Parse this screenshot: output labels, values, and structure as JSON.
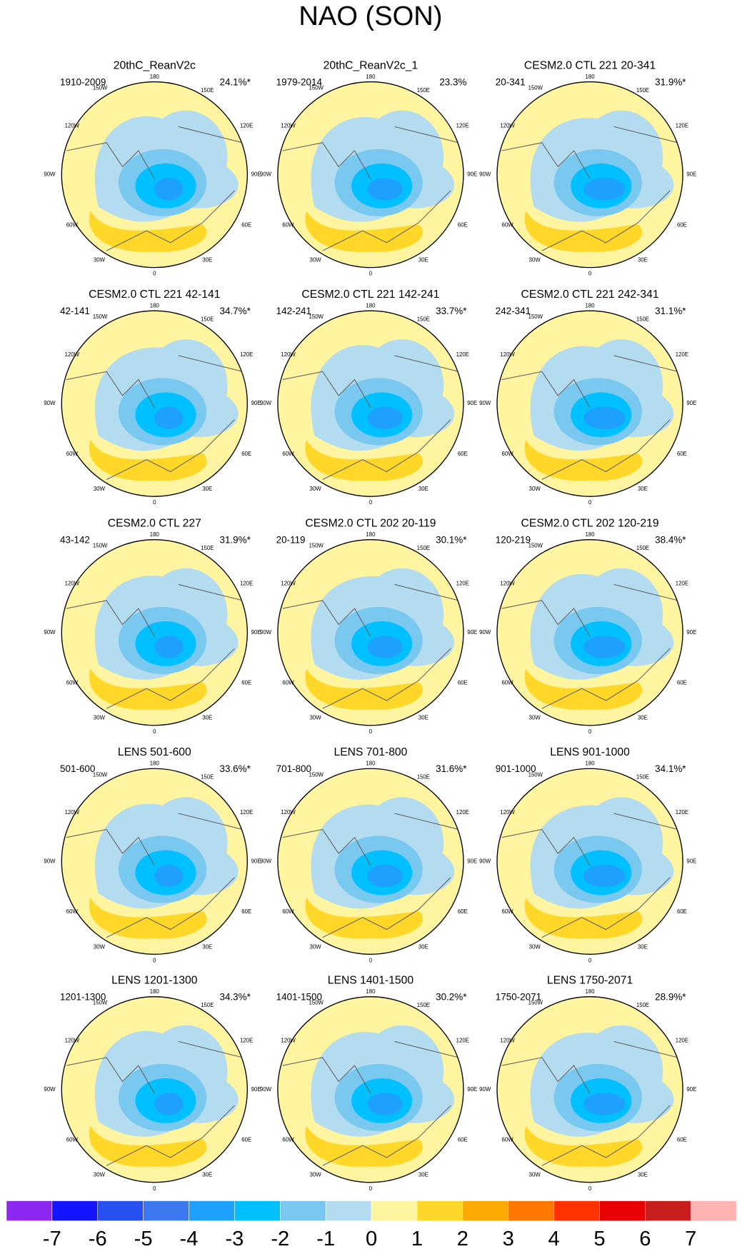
{
  "title": "NAO (SON)",
  "lon_labels": [
    "180",
    "150W",
    "150E",
    "120W",
    "120E",
    "90W",
    "90E",
    "60W",
    "60E",
    "30W",
    "30E",
    "0"
  ],
  "panels": [
    {
      "title": "20thC_ReanV2c",
      "period": "1910-2009",
      "variance": "24.1%*"
    },
    {
      "title": "20thC_ReanV2c_1",
      "period": "1979-2014",
      "variance": "23.3%"
    },
    {
      "title": "CESM2.0 CTL 221 20-341",
      "period": "20-341",
      "variance": "31.9%*"
    },
    {
      "title": "CESM2.0 CTL 221 42-141",
      "period": "42-141",
      "variance": "34.7%*"
    },
    {
      "title": "CESM2.0 CTL 221 142-241",
      "period": "142-241",
      "variance": "33.7%*"
    },
    {
      "title": "CESM2.0 CTL 221 242-341",
      "period": "242-341",
      "variance": "31.1%*"
    },
    {
      "title": "CESM2.0 CTL 227",
      "period": "43-142",
      "variance": "31.9%*"
    },
    {
      "title": "CESM2.0 CTL 202 20-119",
      "period": "20-119",
      "variance": "30.1%*"
    },
    {
      "title": "CESM2.0 CTL 202 120-219",
      "period": "120-219",
      "variance": "38.4%*"
    },
    {
      "title": "LENS 501-600",
      "period": "501-600",
      "variance": "33.6%*"
    },
    {
      "title": "LENS 701-800",
      "period": "701-800",
      "variance": "31.6%*"
    },
    {
      "title": "LENS 901-1000",
      "period": "901-1000",
      "variance": "34.1%*"
    },
    {
      "title": "LENS 1201-1300",
      "period": "1201-1300",
      "variance": "34.3%*"
    },
    {
      "title": "LENS 1401-1500",
      "period": "1401-1500",
      "variance": "30.2%*"
    },
    {
      "title": "LENS 1750-2071",
      "period": "1750-2071",
      "variance": "28.9%*"
    }
  ],
  "colorbar": {
    "ticks": [
      -7,
      -6,
      -5,
      -4,
      -3,
      -2,
      -1,
      0,
      1,
      2,
      3,
      4,
      5,
      6,
      7
    ],
    "colors": [
      "#8c28f0",
      "#1414ff",
      "#2850f0",
      "#3c78f0",
      "#1ea0ff",
      "#00c0ff",
      "#78c8f0",
      "#b4dcf0",
      "#fff5a0",
      "#ffd728",
      "#ffaa00",
      "#ff7800",
      "#ff3200",
      "#e60000",
      "#c81e1e",
      "#ffb4b4"
    ]
  }
}
